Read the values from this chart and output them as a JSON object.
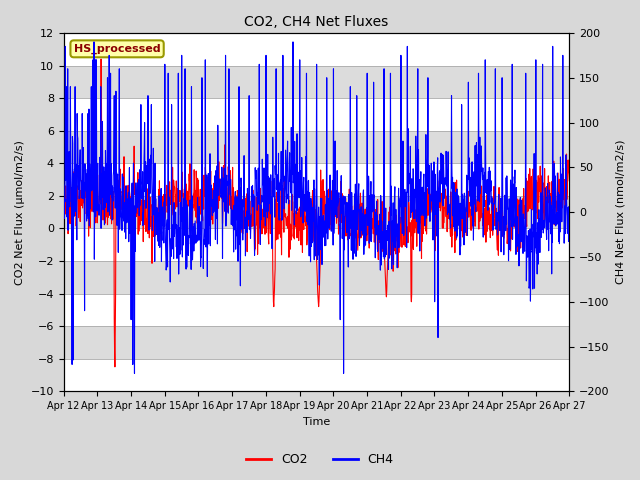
{
  "title": "CO2, CH4 Net Fluxes",
  "xlabel": "Time",
  "ylabel_left": "CO2 Net Flux (μmol/m2/s)",
  "ylabel_right": "CH4 Net Flux (nmol/m2/s)",
  "ylim_left": [
    -10,
    12
  ],
  "ylim_right": [
    -200,
    200
  ],
  "yticks_left": [
    -10,
    -8,
    -6,
    -4,
    -2,
    0,
    2,
    4,
    6,
    8,
    10,
    12
  ],
  "yticks_right": [
    -200,
    -150,
    -100,
    -50,
    0,
    50,
    100,
    150,
    200
  ],
  "xticklabels": [
    "Apr 12",
    "Apr 13",
    "Apr 14",
    "Apr 15",
    "Apr 16",
    "Apr 17",
    "Apr 18",
    "Apr 19",
    "Apr 20",
    "Apr 21",
    "Apr 22",
    "Apr 23",
    "Apr 24",
    "Apr 25",
    "Apr 26",
    "Apr 27"
  ],
  "co2_color": "#ff0000",
  "ch4_color": "#0000ff",
  "fig_facecolor": "#d8d8d8",
  "plot_bg_white": "#ffffff",
  "plot_bg_gray": "#dcdcdc",
  "label_box_text": "HS_processed",
  "label_box_facecolor": "#ffffaa",
  "label_box_edgecolor": "#999900",
  "legend_labels": [
    "CO2",
    "CH4"
  ],
  "seed": 42,
  "n_points": 1500
}
